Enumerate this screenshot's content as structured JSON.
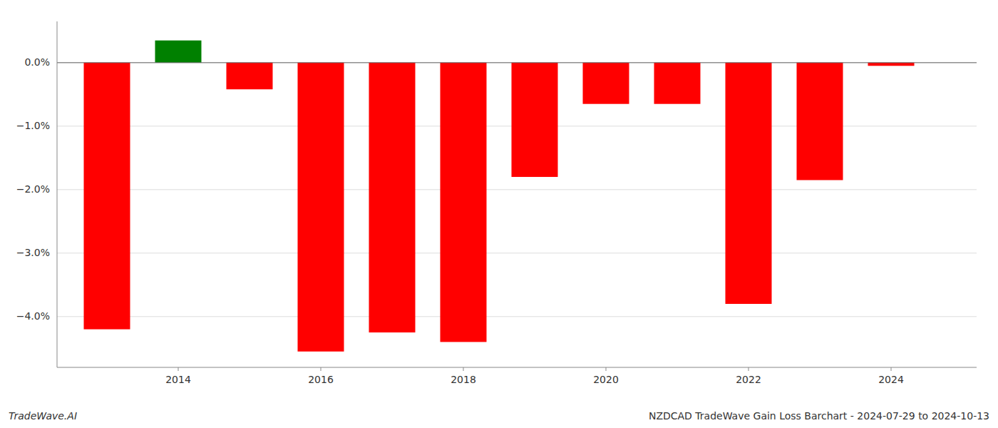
{
  "chart_data": {
    "type": "bar",
    "x": [
      2013,
      2014,
      2015,
      2016,
      2017,
      2018,
      2019,
      2020,
      2021,
      2022,
      2023,
      2024
    ],
    "values": [
      -4.2,
      0.35,
      -0.42,
      -4.55,
      -4.25,
      -4.4,
      -1.8,
      -0.65,
      -0.65,
      -3.8,
      -1.85,
      -0.05
    ],
    "colors": [
      "#ff0000",
      "#008000",
      "#ff0000",
      "#ff0000",
      "#ff0000",
      "#ff0000",
      "#ff0000",
      "#ff0000",
      "#ff0000",
      "#ff0000",
      "#ff0000",
      "#ff0000"
    ],
    "xlim": [
      2012.3,
      2025.2
    ],
    "xticks": [
      2014,
      2016,
      2018,
      2020,
      2022,
      2024
    ],
    "ylim": [
      -4.8,
      0.65
    ],
    "yticks": [
      {
        "value": 0.0,
        "label": "0.0%"
      },
      {
        "value": -1.0,
        "label": "−1.0%"
      },
      {
        "value": -2.0,
        "label": "−2.0%"
      },
      {
        "value": -3.0,
        "label": "−3.0%"
      },
      {
        "value": -4.0,
        "label": "−4.0%"
      }
    ],
    "grid": true,
    "annotations": [
      "TradeWave.AI",
      "NZDCAD TradeWave Gain Loss Barchart - 2024-07-29 to 2024-10-13"
    ]
  }
}
